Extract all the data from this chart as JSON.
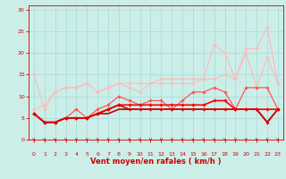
{
  "title": "",
  "xlabel": "Vent moyen/en rafales ( km/h )",
  "x_ticks": [
    0,
    1,
    2,
    3,
    4,
    5,
    6,
    7,
    8,
    9,
    10,
    11,
    12,
    13,
    14,
    15,
    16,
    17,
    18,
    19,
    20,
    21,
    22,
    23
  ],
  "ylim": [
    0,
    31
  ],
  "xlim": [
    -0.5,
    23.5
  ],
  "y_ticks": [
    0,
    5,
    10,
    15,
    20,
    25,
    30
  ],
  "bg_color": "#cceee8",
  "grid_color": "#aadddd",
  "series": [
    {
      "x": [
        0,
        1,
        2,
        3,
        4,
        5,
        6,
        7,
        8,
        9,
        10,
        11,
        12,
        13,
        14,
        15,
        16,
        17,
        18,
        19,
        20,
        21,
        22,
        23
      ],
      "y": [
        15,
        7,
        11,
        12,
        12,
        13,
        11,
        12,
        13,
        12,
        11,
        13,
        13,
        13,
        13,
        13,
        14,
        22,
        20,
        14,
        20,
        12,
        19,
        13
      ],
      "color": "#ffbbbb",
      "linewidth": 0.8,
      "marker": "D",
      "markersize": 1.8,
      "zorder": 2
    },
    {
      "x": [
        0,
        1,
        2,
        3,
        4,
        5,
        6,
        7,
        8,
        9,
        10,
        11,
        12,
        13,
        14,
        15,
        16,
        17,
        18,
        19,
        20,
        21,
        22,
        23
      ],
      "y": [
        7,
        8,
        11,
        12,
        12,
        13,
        11,
        12,
        13,
        13,
        13,
        13,
        14,
        14,
        14,
        14,
        14,
        14,
        15,
        14,
        21,
        21,
        26,
        13
      ],
      "color": "#ffbbbb",
      "linewidth": 0.8,
      "marker": "D",
      "markersize": 1.8,
      "zorder": 2
    },
    {
      "x": [
        0,
        1,
        2,
        3,
        4,
        5,
        6,
        7,
        8,
        9,
        10,
        11,
        12,
        13,
        14,
        15,
        16,
        17,
        18,
        19,
        20,
        21,
        22,
        23
      ],
      "y": [
        6,
        4,
        4,
        5,
        7,
        5,
        7,
        8,
        10,
        9,
        8,
        9,
        9,
        7,
        9,
        11,
        11,
        12,
        11,
        7,
        12,
        12,
        12,
        7
      ],
      "color": "#ff5555",
      "linewidth": 0.9,
      "marker": "D",
      "markersize": 1.8,
      "zorder": 3
    },
    {
      "x": [
        0,
        1,
        2,
        3,
        4,
        5,
        6,
        7,
        8,
        9,
        10,
        11,
        12,
        13,
        14,
        15,
        16,
        17,
        18,
        19,
        20,
        21,
        22,
        23
      ],
      "y": [
        6,
        4,
        4,
        5,
        5,
        5,
        6,
        7,
        8,
        8,
        8,
        8,
        8,
        8,
        8,
        8,
        8,
        9,
        9,
        7,
        7,
        7,
        7,
        7
      ],
      "color": "#ff0000",
      "linewidth": 1.2,
      "marker": "D",
      "markersize": 1.8,
      "zorder": 4
    },
    {
      "x": [
        0,
        1,
        2,
        3,
        4,
        5,
        6,
        7,
        8,
        9,
        10,
        11,
        12,
        13,
        14,
        15,
        16,
        17,
        18,
        19,
        20,
        21,
        22,
        23
      ],
      "y": [
        6,
        4,
        4,
        5,
        5,
        5,
        6,
        7,
        8,
        7,
        7,
        7,
        7,
        7,
        7,
        7,
        7,
        7,
        7,
        7,
        7,
        7,
        4,
        7
      ],
      "color": "#dd0000",
      "linewidth": 1.2,
      "marker": "D",
      "markersize": 1.8,
      "zorder": 4
    },
    {
      "x": [
        0,
        1,
        2,
        3,
        4,
        5,
        6,
        7,
        8,
        9,
        10,
        11,
        12,
        13,
        14,
        15,
        16,
        17,
        18,
        19,
        20,
        21,
        22,
        23
      ],
      "y": [
        6,
        4,
        4,
        5,
        5,
        5,
        6,
        6,
        7,
        7,
        7,
        7,
        7,
        7,
        7,
        7,
        7,
        7,
        7,
        7,
        7,
        7,
        4,
        7
      ],
      "color": "#bb0000",
      "linewidth": 1.2,
      "marker": null,
      "markersize": 0,
      "zorder": 3
    }
  ],
  "arrow_color": "#cc0000",
  "tick_color": "#cc0000",
  "label_color": "#cc0000",
  "tick_fontsize": 4.5,
  "xlabel_fontsize": 6.0
}
